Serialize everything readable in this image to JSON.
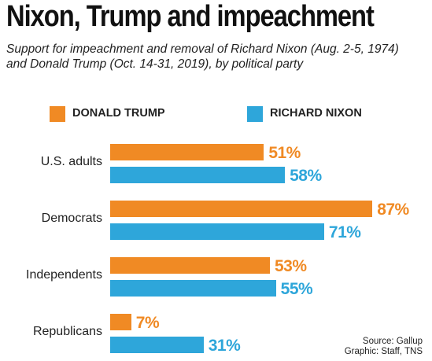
{
  "title": "Nixon, Trump and impeachment",
  "subtitle": "Support for impeachment and removal of Richard Nixon (Aug. 2-5, 1974) and Donald Trump (Oct. 14-31, 2019), by political party",
  "colors": {
    "trump": "#F08A24",
    "nixon": "#2EA6DA"
  },
  "chart_data": {
    "type": "bar",
    "orientation": "horizontal",
    "categories": [
      "U.S. adults",
      "Democrats",
      "Independents",
      "Republicans"
    ],
    "series": [
      {
        "name": "DONALD TRUMP",
        "values": [
          51,
          87,
          53,
          7
        ],
        "labels": [
          "51%",
          "87%",
          "53%",
          "7%"
        ],
        "color": "#F08A24"
      },
      {
        "name": "RICHARD NIXON",
        "values": [
          58,
          71,
          55,
          31
        ],
        "labels": [
          "58%",
          "71%",
          "55%",
          "31%"
        ],
        "color": "#2EA6DA"
      }
    ],
    "unit": "%",
    "xlim": [
      0,
      100
    ],
    "legend": "top",
    "grid": false
  },
  "source": {
    "line1": "Source: Gallup",
    "line2": "Graphic: Staff, TNS"
  }
}
